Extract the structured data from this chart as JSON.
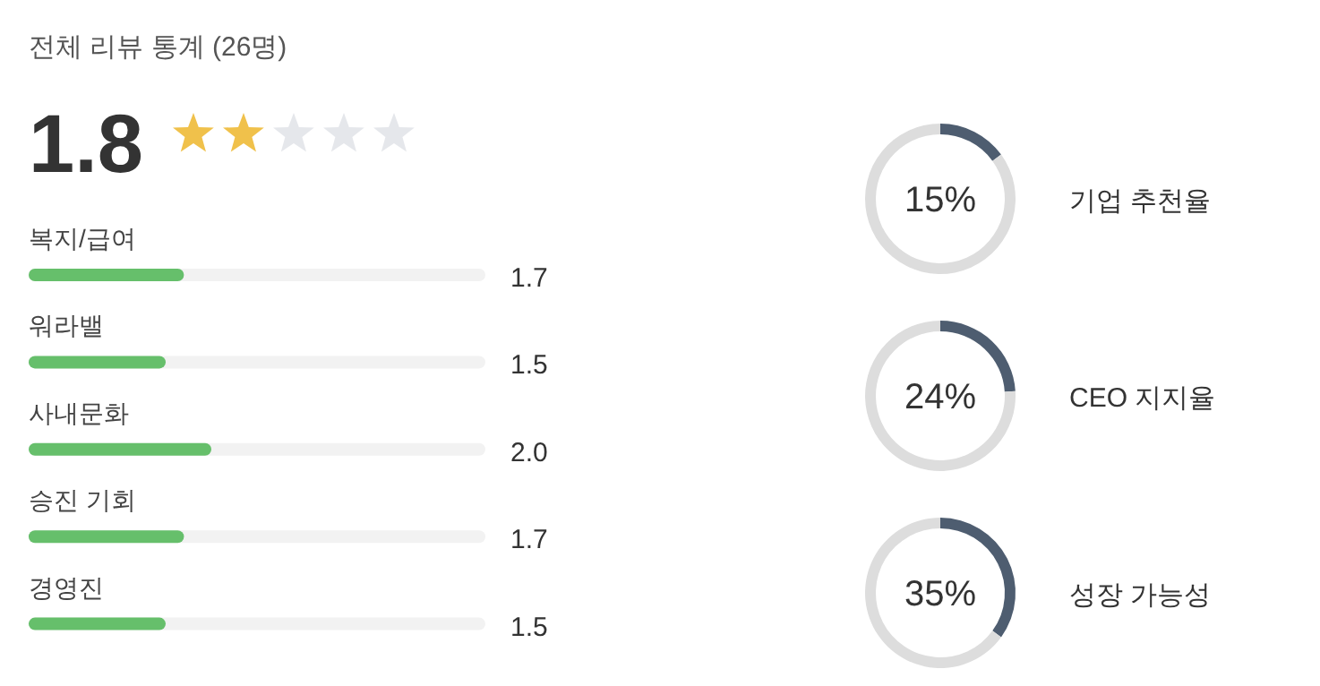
{
  "chart_data": [
    {
      "type": "other",
      "title": "전체 리뷰 통계 (26명)",
      "annotations": [
        "1.8"
      ]
    },
    {
      "type": "bar",
      "orientation": "horizontal",
      "categories": [
        "복지/급여",
        "워라밸",
        "사내문화",
        "승진 기회",
        "경영진"
      ],
      "values": [
        1.7,
        1.5,
        2.0,
        1.7,
        1.5
      ],
      "value_labels": [
        "1.7",
        "1.5",
        "2.0",
        "1.7",
        "1.5"
      ],
      "xlim": [
        0,
        5
      ],
      "color": "#66bf6b"
    },
    {
      "type": "donut",
      "title": "기업 추천율",
      "values": [
        15,
        85
      ],
      "colors": [
        "#4e5d70",
        "#dddddd"
      ],
      "annotations": [
        "15%"
      ]
    },
    {
      "type": "donut",
      "title": "CEO 지지율",
      "values": [
        24,
        76
      ],
      "colors": [
        "#4e5d70",
        "#dddddd"
      ],
      "annotations": [
        "24%"
      ]
    },
    {
      "type": "donut",
      "title": "성장 가능성",
      "values": [
        35,
        65
      ],
      "colors": [
        "#4e5d70",
        "#dddddd"
      ],
      "annotations": [
        "35%"
      ]
    }
  ]
}
